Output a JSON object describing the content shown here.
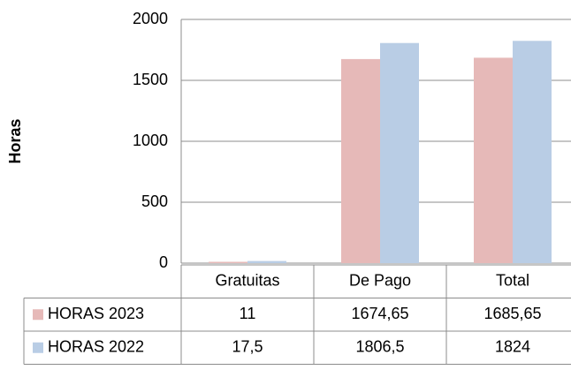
{
  "chart_data": {
    "type": "bar",
    "y_label": "Horas",
    "categories": [
      "Gratuitas",
      "De Pago",
      "Total"
    ],
    "series": [
      {
        "name": "HORAS 2023",
        "color": "#e6b9b8",
        "values": [
          11,
          1674.65,
          1685.65
        ],
        "value_labels": [
          "11",
          "1674,65",
          "1685,65"
        ]
      },
      {
        "name": "HORAS 2022",
        "color": "#b9cde5",
        "values": [
          17.5,
          1806.5,
          1824
        ],
        "value_labels": [
          "17,5",
          "1806,5",
          "1824"
        ]
      }
    ],
    "ylim": [
      0,
      2000
    ],
    "yticks": [
      0,
      500,
      1000,
      1500,
      2000
    ],
    "grid": true,
    "data_table": true
  }
}
